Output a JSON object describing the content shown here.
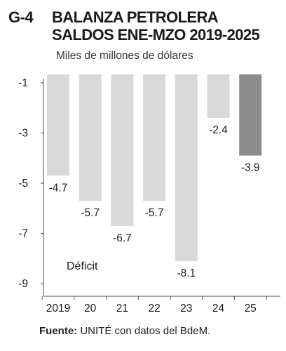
{
  "header": {
    "figure_code": "G-4",
    "title_line1": "BALANZA PETROLERA",
    "title_line2": "SALDOS ENE-MZO 2019-2025",
    "subtitle": "Miles de millones de dólares"
  },
  "footer": {
    "source_label": "Fuente:",
    "source_text": "UNITÉ con datos del BdeM."
  },
  "colors": {
    "bar": "#d9d9d9",
    "bar_highlight": "#8c8c8c",
    "axis": "#4d4d4d",
    "text": "#1a1a1a"
  },
  "chart_data": {
    "type": "bar",
    "categories": [
      "2019",
      "20",
      "21",
      "22",
      "23",
      "24",
      "25"
    ],
    "values": [
      -4.7,
      -5.7,
      -6.7,
      -5.7,
      -8.1,
      -2.4,
      -3.9
    ],
    "data_labels": [
      "-4.7",
      "-5.7",
      "-6.7",
      "-5.7",
      "-8.1",
      "-2.4",
      "-3.9"
    ],
    "highlight_index": 6,
    "y_ticks": [
      "-1",
      "-3",
      "-5",
      "-7",
      "-9"
    ],
    "y_tick_values": [
      -1,
      -3,
      -5,
      -7,
      -9
    ],
    "ylim": [
      -9.5,
      -0.5
    ],
    "annotation": "Déficit",
    "grid": false
  }
}
